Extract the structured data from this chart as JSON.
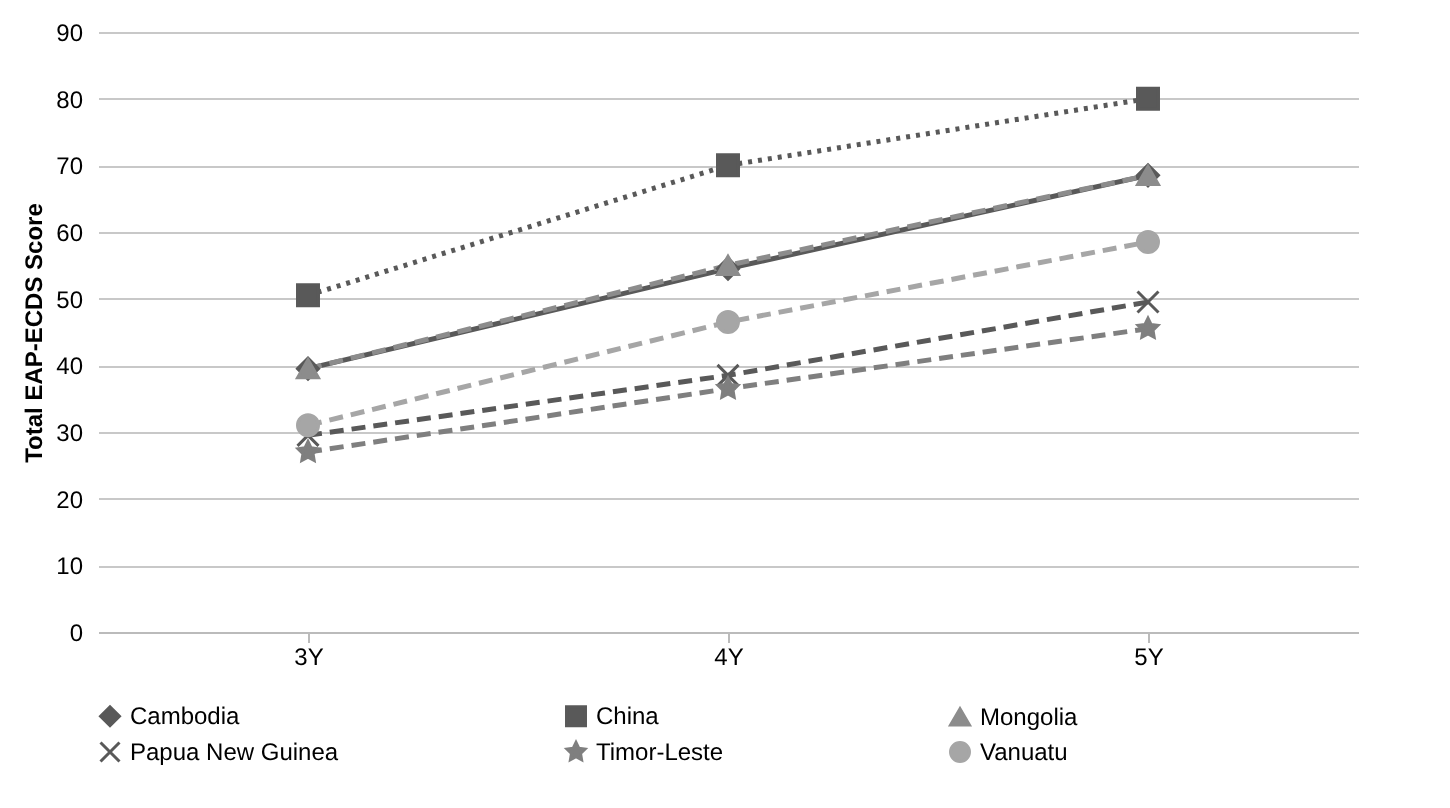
{
  "chart_data": {
    "type": "line",
    "ylabel": "Total EAP-ECDS Score",
    "categories": [
      "3Y",
      "4Y",
      "5Y"
    ],
    "series": [
      {
        "name": "Cambodia",
        "color": "#595959",
        "marker": "diamond",
        "line_style": "solid",
        "values": [
          39.5,
          54.5,
          68.5
        ]
      },
      {
        "name": "China",
        "color": "#595959",
        "marker": "square",
        "line_style": "dotted",
        "values": [
          50.5,
          70,
          80
        ]
      },
      {
        "name": "Mongolia",
        "color": "#8c8c8c",
        "marker": "triangle",
        "line_style": "dashed",
        "values": [
          39.5,
          55,
          68.5
        ]
      },
      {
        "name": "Papua New Guinea",
        "color": "#595959",
        "marker": "cross",
        "line_style": "dashed",
        "values": [
          29.5,
          38.5,
          49.5
        ]
      },
      {
        "name": "Timor-Leste",
        "color": "#7f7f7f",
        "marker": "star",
        "line_style": "dashed",
        "values": [
          27,
          36.5,
          45.5
        ]
      },
      {
        "name": "Vanuatu",
        "color": "#a6a6a6",
        "marker": "circle",
        "line_style": "dashed",
        "values": [
          31,
          46.5,
          58.5
        ]
      }
    ],
    "ylim": [
      0,
      90
    ],
    "yticks": [
      0,
      10,
      20,
      30,
      40,
      50,
      60,
      70,
      80,
      90
    ],
    "grid": "y",
    "legend": "bottom"
  }
}
